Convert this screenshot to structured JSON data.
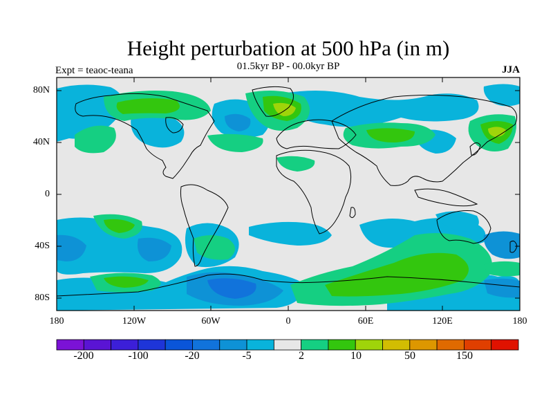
{
  "title": "Height perturbation at 500 hPa (in m)",
  "subtitle": "01.5kyr BP - 00.0kyr BP",
  "left_label": "Expt = teaoc-teana",
  "right_label": "JJA",
  "lat_labels": [
    "80N",
    "40N",
    "0",
    "40S",
    "80S"
  ],
  "lon_labels": [
    "180",
    "120W",
    "60W",
    "0",
    "60E",
    "120E",
    "180"
  ],
  "colorbar": {
    "labels": [
      "-200",
      "-100",
      "-20",
      "-5",
      "2",
      "10",
      "50",
      "150"
    ],
    "colors": [
      "#7b12d6",
      "#5a14d4",
      "#3c1fd8",
      "#1e35d8",
      "#0a55d9",
      "#1173db",
      "#0e92d6",
      "#09b3db",
      "#e7e7e7",
      "#15cf82",
      "#33c60e",
      "#9fd40a",
      "#d2bd02",
      "#dd9700",
      "#e06a00",
      "#e03f00",
      "#e01200"
    ]
  },
  "fill_colors": {
    "background": "#e7e7e7",
    "neg_light": "#09b3db",
    "neg_mid": "#0e92d6",
    "neg_dark": "#1173db",
    "pos_light": "#15cf82",
    "pos_mid": "#33c60e",
    "pos_high": "#9fd40a",
    "pos_max": "#d2bd02"
  }
}
